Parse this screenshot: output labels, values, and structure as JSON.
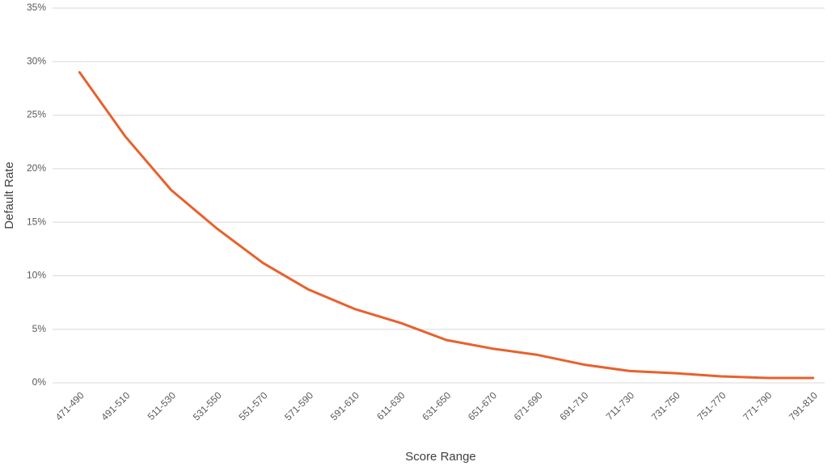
{
  "chart_data": {
    "type": "line",
    "x_label": "Score Range",
    "y_label": "Default Rate",
    "categories": [
      "471-490",
      "491-510",
      "511-530",
      "531-550",
      "551-570",
      "571-590",
      "591-610",
      "611-630",
      "631-650",
      "651-670",
      "671-690",
      "691-710",
      "711-730",
      "731-750",
      "751-770",
      "771-790",
      "791-810"
    ],
    "series": [
      {
        "name": "Default Rate",
        "color": "#e8612c",
        "values": [
          29.0,
          23.0,
          18.0,
          14.4,
          11.2,
          8.7,
          6.9,
          5.6,
          4.0,
          3.2,
          2.6,
          1.7,
          1.1,
          0.9,
          0.6,
          0.45,
          0.45
        ]
      }
    ],
    "ylim": [
      0,
      35
    ],
    "yticks": [
      {
        "value": 0,
        "label": "0%"
      },
      {
        "value": 5,
        "label": "5%"
      },
      {
        "value": 10,
        "label": "10%"
      },
      {
        "value": 15,
        "label": "15%"
      },
      {
        "value": 20,
        "label": "20%"
      },
      {
        "value": 25,
        "label": "25%"
      },
      {
        "value": 30,
        "label": "30%"
      },
      {
        "value": 35,
        "label": "35%"
      }
    ],
    "grid": true
  }
}
